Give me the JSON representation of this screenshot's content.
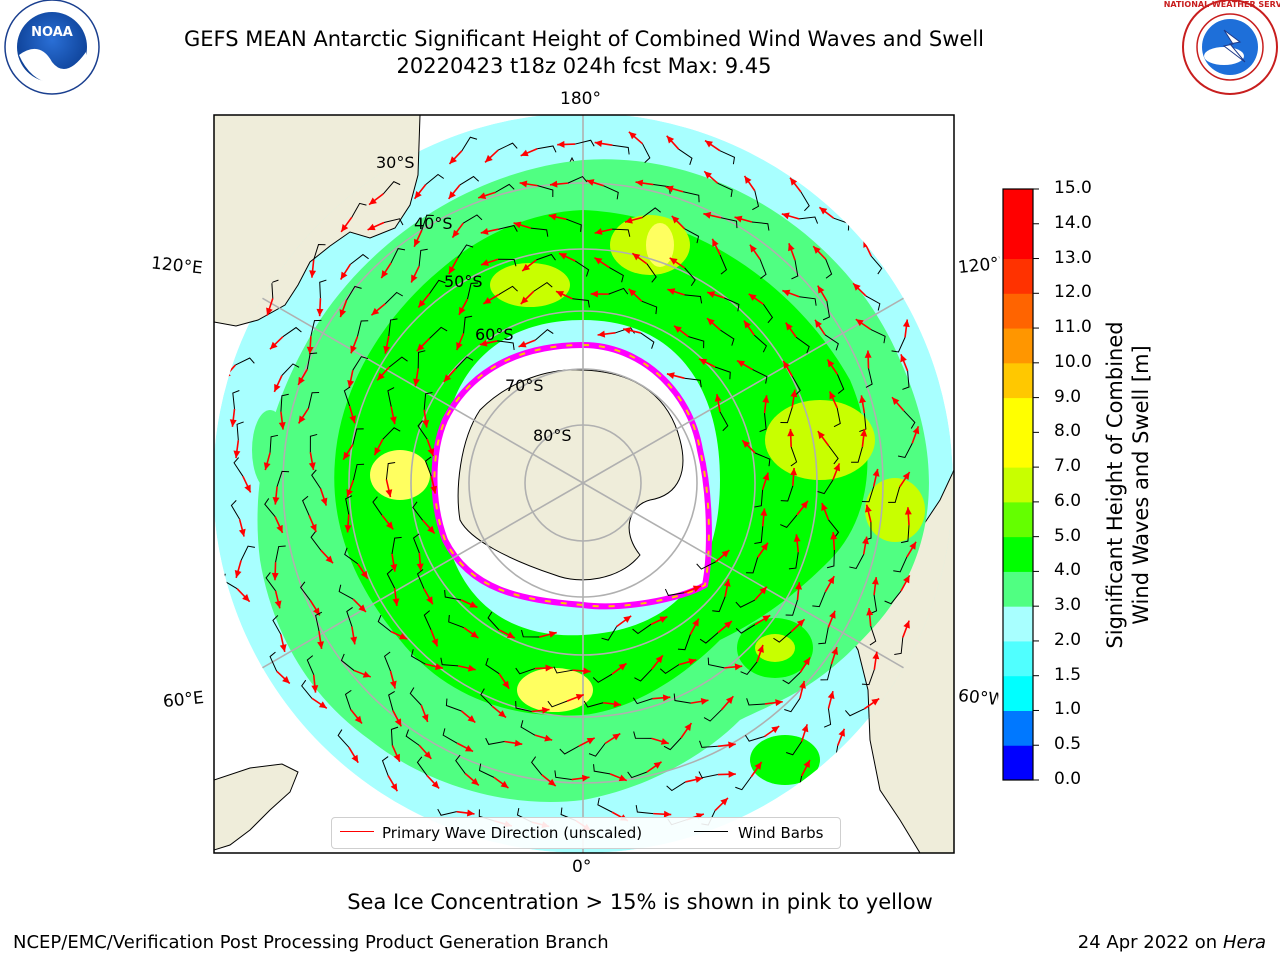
{
  "header": {
    "title_line1": "GEFS MEAN Antarctic Significant Height of Combined Wind Waves and Swell",
    "title_line2": "20220423 t18z 024h fcst   Max: 9.45"
  },
  "logos": {
    "left": {
      "text": "NOAA",
      "icon": "noaa-logo-icon"
    },
    "right": {
      "text": "NATIONAL WEATHER SERVICE",
      "icon": "nws-logo-icon"
    }
  },
  "map": {
    "latitude_labels": [
      "30°S",
      "40°S",
      "50°S",
      "60°S",
      "70°S",
      "80°S"
    ],
    "longitude_labels": {
      "top": "180°",
      "bottom": "0°",
      "upper_left": "120°E",
      "upper_right": "120°W",
      "lower_left": "60°E",
      "lower_right": "60°W"
    },
    "colors": {
      "land": "#efedda",
      "ice": "#ffffff",
      "ocean_low": "#a8ffff",
      "wave_direction": "#ff0000",
      "wind_barb": "#000000"
    },
    "legend": {
      "wave_direction": "Primary Wave Direction (unscaled)",
      "wind_barbs": "Wind Barbs"
    }
  },
  "colorbar": {
    "title_line1": "Significant Height of Combined",
    "title_line2": "Wind Waves and Swell [m]",
    "ticks": [
      "0.0",
      "0.5",
      "1.0",
      "1.5",
      "2.0",
      "3.0",
      "4.0",
      "5.0",
      "6.0",
      "7.0",
      "8.0",
      "9.0",
      "10.0",
      "11.0",
      "12.0",
      "13.0",
      "14.0",
      "15.0"
    ],
    "colors": [
      "#0000ff",
      "#0078ff",
      "#00ffff",
      "#50ffff",
      "#a8ffff",
      "#50ff82",
      "#00ff00",
      "#64ff00",
      "#c8ff00",
      "#ffff00",
      "#ffff00",
      "#ffc800",
      "#ff9600",
      "#ff6400",
      "#ff3200",
      "#ff0000",
      "#ff0000"
    ]
  },
  "footer": {
    "sea_ice_note": "Sea Ice Concentration > 15% is shown in pink to yellow",
    "left": "NCEP/EMC/Verification Post Processing Product Generation Branch",
    "date": "24 Apr 2022 on ",
    "host": "Hera"
  }
}
